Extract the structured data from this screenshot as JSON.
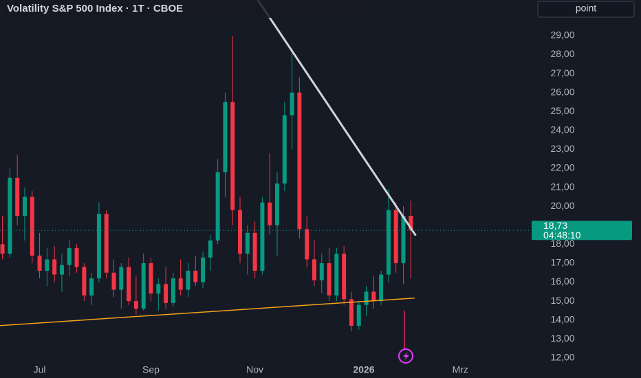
{
  "chart_data": {
    "type": "candlestick",
    "title": "Volatility S&P 500 Index · 1T · CBOE",
    "button": "point",
    "x": [
      -15,
      -12,
      -9,
      -6,
      -3,
      0,
      3,
      6,
      9,
      12,
      15,
      18,
      21,
      24,
      27,
      30,
      33,
      36,
      39,
      42,
      45,
      48,
      51,
      54,
      57,
      60,
      63,
      66,
      69,
      72,
      75,
      78,
      81,
      84,
      87,
      90,
      93,
      96,
      99,
      102,
      105,
      108,
      111,
      114,
      117,
      120,
      123,
      126,
      129,
      132,
      135,
      138,
      141,
      144,
      147,
      150
    ],
    "open": [
      18.0,
      17.5,
      21.5,
      19.5,
      20.5,
      17.4,
      16.6,
      17.2,
      16.4,
      16.9,
      17.8,
      16.8,
      15.3,
      16.2,
      19.6,
      16.5,
      15.6,
      16.8,
      15.0,
      14.6,
      17.0,
      15.4,
      15.9,
      14.9,
      16.2,
      15.6,
      16.6,
      16.0,
      17.3,
      18.2,
      21.8,
      25.5,
      19.8,
      17.5,
      18.6,
      16.6,
      20.2,
      19.0,
      21.2,
      24.8,
      26.0,
      18.8,
      17.2,
      16.1,
      17.0,
      15.3,
      17.5,
      15.1,
      13.7,
      14.8,
      15.5,
      15.0,
      16.4,
      19.8,
      17.0,
      19.5
    ],
    "high": [
      19.5,
      22.0,
      22.7,
      21.0,
      20.8,
      18.6,
      17.8,
      17.9,
      17.5,
      18.2,
      18.0,
      17.0,
      16.5,
      20.2,
      19.8,
      17.2,
      17.0,
      17.3,
      16.3,
      17.5,
      17.3,
      16.2,
      16.8,
      16.5,
      17.2,
      17.0,
      17.4,
      17.6,
      18.5,
      22.5,
      26.0,
      29.0,
      20.5,
      19.0,
      19.2,
      20.5,
      22.8,
      21.8,
      25.5,
      28.3,
      26.8,
      19.5,
      18.2,
      17.5,
      17.8,
      17.8,
      17.9,
      15.5,
      15.0,
      15.8,
      16.3,
      16.6,
      20.9,
      20.2,
      20.0,
      20.3
    ],
    "low": [
      17.2,
      17.3,
      19.0,
      18.2,
      17.0,
      16.2,
      15.8,
      16.0,
      15.5,
      16.3,
      16.5,
      15.0,
      14.8,
      16.0,
      16.2,
      15.2,
      14.6,
      14.8,
      14.3,
      14.5,
      15.0,
      14.5,
      14.6,
      14.7,
      15.3,
      15.2,
      15.8,
      15.7,
      16.6,
      18.0,
      20.5,
      19.0,
      17.0,
      16.4,
      16.2,
      16.4,
      18.5,
      17.4,
      20.8,
      23.0,
      18.3,
      16.8,
      15.8,
      15.4,
      15.0,
      15.0,
      14.8,
      13.4,
      13.5,
      14.2,
      14.6,
      14.8,
      16.0,
      16.5,
      15.9,
      16.2
    ],
    "close": [
      17.5,
      21.5,
      19.5,
      20.5,
      17.4,
      16.6,
      17.2,
      16.4,
      16.9,
      17.8,
      16.8,
      15.3,
      16.2,
      19.6,
      16.5,
      15.6,
      16.8,
      15.0,
      14.6,
      17.0,
      15.4,
      15.9,
      14.9,
      16.2,
      15.6,
      16.6,
      16.0,
      17.3,
      18.2,
      21.8,
      25.5,
      19.8,
      17.5,
      18.6,
      16.6,
      20.2,
      19.0,
      21.2,
      24.8,
      26.0,
      18.8,
      17.2,
      16.1,
      17.0,
      15.3,
      17.5,
      15.1,
      13.7,
      14.8,
      15.5,
      15.0,
      16.4,
      19.8,
      17.0,
      19.5,
      18.73
    ],
    "up_color": "#089981",
    "down_color": "#f23645",
    "xlim": [
      -16,
      198
    ],
    "ylim": [
      11.67,
      30.88
    ],
    "xticks": [
      {
        "value": 0,
        "label": "Jul"
      },
      {
        "value": 45,
        "label": "Sep"
      },
      {
        "value": 87,
        "label": "Nov"
      },
      {
        "value": 131,
        "label": "2026"
      },
      {
        "value": 170,
        "label": "Mrz"
      }
    ],
    "yticks": [
      {
        "value": 12,
        "label": "12,00"
      },
      {
        "value": 13,
        "label": "13,00"
      },
      {
        "value": 14,
        "label": "14,00"
      },
      {
        "value": 15,
        "label": "15,00"
      },
      {
        "value": 16,
        "label": "16,00"
      },
      {
        "value": 17,
        "label": "17,00"
      },
      {
        "value": 18,
        "label": "18,00"
      },
      {
        "value": 19,
        "label": "19,00"
      },
      {
        "value": 20,
        "label": "20,00"
      },
      {
        "value": 21,
        "label": "21,00"
      },
      {
        "value": 22,
        "label": "22,00"
      },
      {
        "value": 23,
        "label": "23,00"
      },
      {
        "value": 24,
        "label": "24,00"
      },
      {
        "value": 25,
        "label": "25,00"
      },
      {
        "value": 26,
        "label": "26,00"
      },
      {
        "value": 27,
        "label": "27,00"
      },
      {
        "value": 28,
        "label": "28,00"
      },
      {
        "value": 29,
        "label": "29,00"
      }
    ],
    "last_price": {
      "value": 18.73,
      "label": "18,73"
    },
    "countdown": "04:48:10",
    "trend_lines": [
      {
        "color": "#d1d4dc",
        "x": [
          88.2,
          152
        ],
        "y": [
          30.88,
          18.46
        ]
      },
      {
        "color": "#f7a21b",
        "x": [
          -16,
          151.5
        ],
        "y": [
          13.71,
          15.16
        ]
      }
    ]
  }
}
